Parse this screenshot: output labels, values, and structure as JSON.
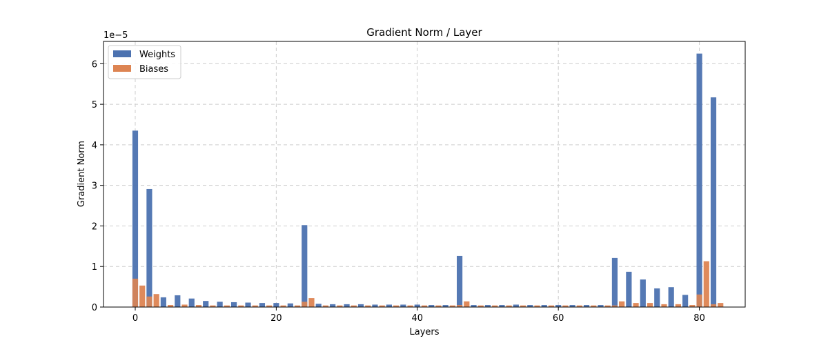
{
  "chart_data": {
    "type": "bar",
    "title": "Gradient Norm / Layer",
    "xlabel": "Layers",
    "ylabel": "Gradient Norm",
    "offset_text": "1e−5",
    "y_scale_exponent": -5,
    "xlim": [
      -4.5,
      86.5
    ],
    "ylim": [
      0,
      6.55
    ],
    "x_ticks": [
      0,
      20,
      40,
      60,
      80
    ],
    "y_ticks": [
      0,
      1,
      2,
      3,
      4,
      5,
      6
    ],
    "grid": true,
    "legend_position": "top-left",
    "series": [
      {
        "name": "Weights",
        "color": "#4c72b0",
        "x": [
          0,
          2,
          4,
          6,
          8,
          10,
          12,
          14,
          16,
          18,
          20,
          22,
          24,
          26,
          28,
          30,
          32,
          34,
          36,
          38,
          40,
          42,
          44,
          46,
          48,
          50,
          52,
          54,
          56,
          58,
          60,
          62,
          64,
          66,
          68,
          70,
          72,
          74,
          76,
          78,
          80,
          82
        ],
        "values": [
          4.35,
          2.91,
          0.24,
          0.29,
          0.21,
          0.15,
          0.13,
          0.12,
          0.11,
          0.1,
          0.1,
          0.09,
          2.02,
          0.08,
          0.07,
          0.07,
          0.07,
          0.06,
          0.06,
          0.06,
          0.06,
          0.05,
          0.05,
          1.26,
          0.05,
          0.05,
          0.05,
          0.06,
          0.05,
          0.05,
          0.05,
          0.05,
          0.05,
          0.05,
          1.21,
          0.87,
          0.68,
          0.46,
          0.49,
          0.3,
          6.25,
          5.17
        ]
      },
      {
        "name": "Biases",
        "color": "#dd8452",
        "x": [
          1,
          3,
          5,
          7,
          9,
          11,
          13,
          15,
          17,
          19,
          21,
          23,
          25,
          27,
          29,
          31,
          33,
          35,
          37,
          39,
          41,
          43,
          45,
          47,
          49,
          51,
          53,
          55,
          57,
          59,
          61,
          63,
          65,
          67,
          69,
          71,
          73,
          75,
          77,
          79,
          81,
          83
        ],
        "values": [
          0.53,
          0.32,
          0.05,
          0.06,
          0.05,
          0.04,
          0.04,
          0.04,
          0.04,
          0.04,
          0.04,
          0.04,
          0.22,
          0.04,
          0.04,
          0.04,
          0.04,
          0.04,
          0.04,
          0.04,
          0.04,
          0.04,
          0.04,
          0.14,
          0.04,
          0.04,
          0.04,
          0.04,
          0.04,
          0.04,
          0.04,
          0.04,
          0.04,
          0.04,
          0.14,
          0.1,
          0.1,
          0.07,
          0.07,
          0.05,
          1.13,
          0.1
        ]
      }
    ],
    "overlay_bias_segments": {
      "x": [
        0,
        2,
        24,
        46,
        68,
        80,
        82
      ],
      "values": [
        0.7,
        0.26,
        0.13,
        0.05,
        0.04,
        0.31,
        0.07
      ]
    }
  }
}
